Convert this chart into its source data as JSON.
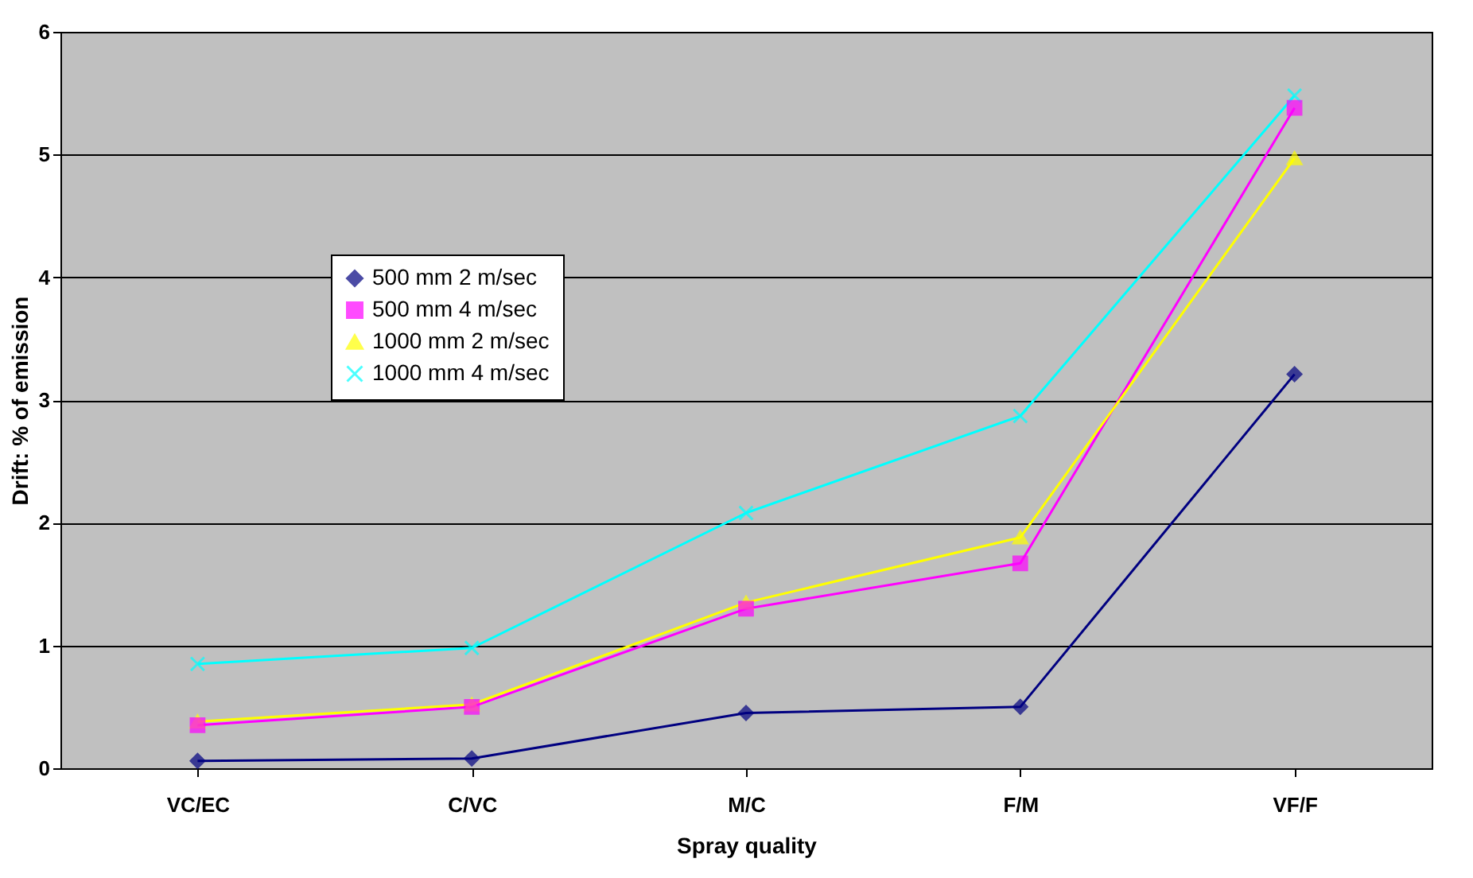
{
  "chart_data": {
    "type": "line",
    "xlabel": "Spray quality",
    "ylabel": "Drift: % of emission",
    "categories": [
      "VC/EC",
      "C/VC",
      "M/C",
      "F/M",
      "VF/F"
    ],
    "series": [
      {
        "name": "500 mm 2 m/sec",
        "color": "#000080",
        "marker": "diamond",
        "values": [
          0.06,
          0.08,
          0.45,
          0.5,
          3.21
        ]
      },
      {
        "name": "500 mm 4 m/sec",
        "color": "#ff00ff",
        "marker": "square",
        "values": [
          0.35,
          0.5,
          1.3,
          1.67,
          5.38
        ]
      },
      {
        "name": "1000 mm 2 m/sec",
        "color": "#ffff00",
        "marker": "triangle",
        "values": [
          0.38,
          0.52,
          1.35,
          1.88,
          4.97
        ]
      },
      {
        "name": "1000 mm 4 m/sec",
        "color": "#00ffff",
        "marker": "cross",
        "values": [
          0.85,
          0.98,
          2.08,
          2.87,
          5.48
        ]
      }
    ],
    "ylim": [
      0,
      6
    ],
    "yticks": [
      0,
      1,
      2,
      3,
      4,
      5,
      6
    ],
    "grid": "y",
    "legend": "left"
  }
}
